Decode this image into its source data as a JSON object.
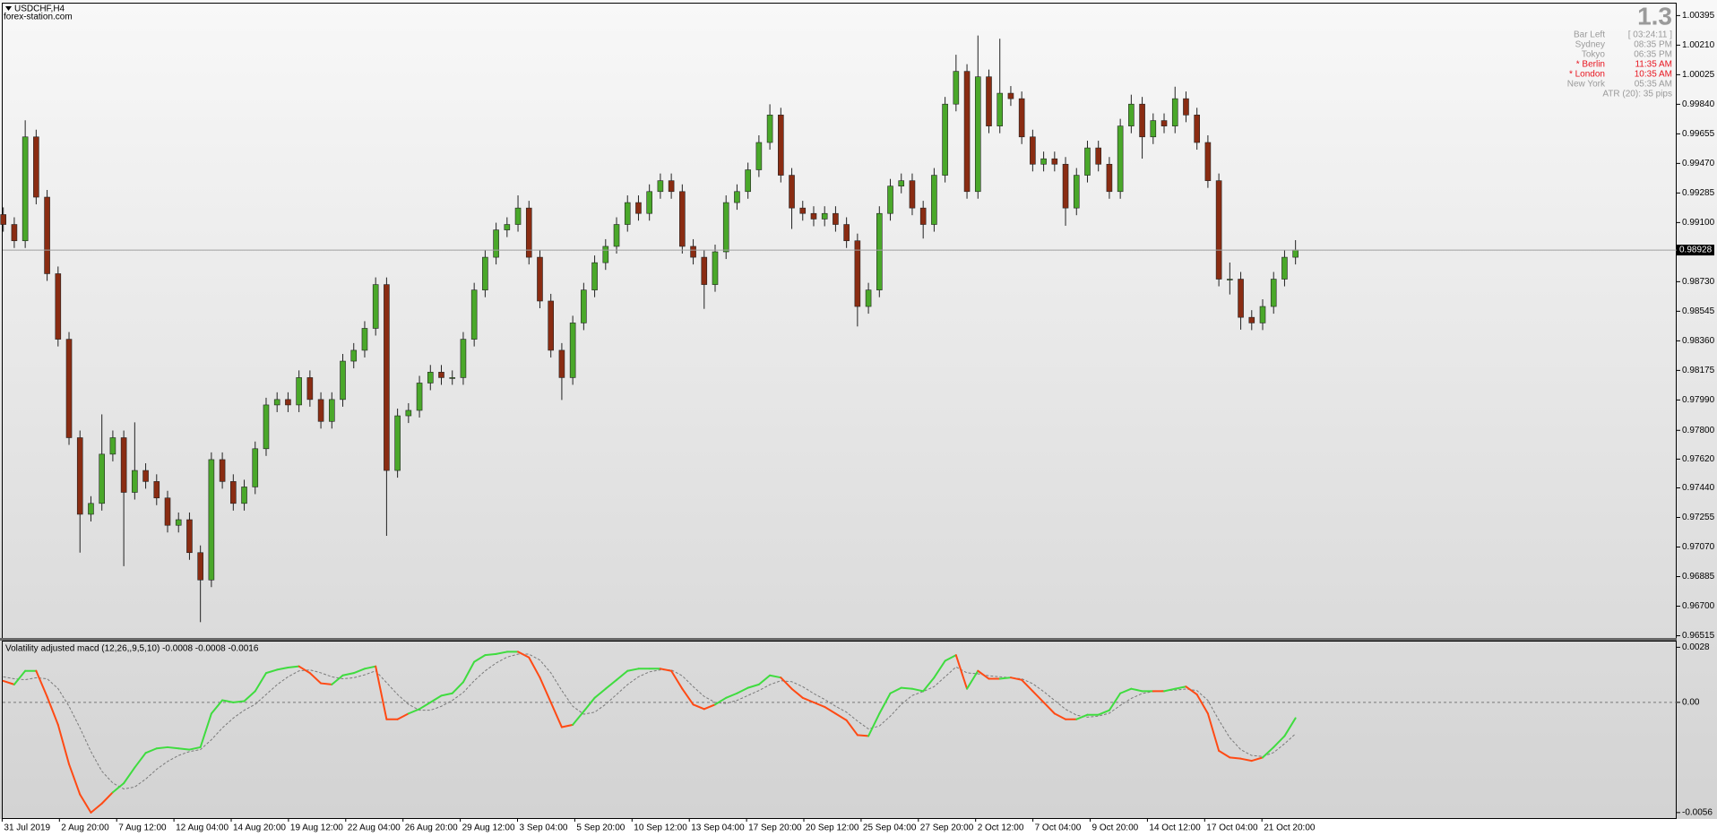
{
  "chart_data": [
    {
      "type": "candlestick",
      "title": "USDCHF,H4",
      "subtitle": "forex-station.com",
      "up_color": "#4aa82a",
      "down_color": "#8a2c12",
      "open": [
        0.9915,
        0.99088,
        0.98986,
        0.99636,
        0.99259,
        0.9878,
        0.9837,
        0.97754,
        0.97275,
        0.97343,
        0.97651,
        0.97754,
        0.97412,
        0.97549,
        0.9748,
        0.97377,
        0.97206,
        0.97241,
        0.97035,
        0.96864,
        0.97617,
        0.9748,
        0.97343,
        0.97446,
        0.97685,
        0.97959,
        0.97993,
        0.97959,
        0.9813,
        0.97993,
        0.97856,
        0.97993,
        0.98233,
        0.98301,
        0.98438,
        0.98712,
        0.97549,
        0.97891,
        0.97925,
        0.98096,
        0.98164,
        0.9813,
        0.9813,
        0.9837,
        0.98678,
        0.98883,
        0.99054,
        0.99088,
        0.99191,
        0.98883,
        0.98609,
        0.98301,
        0.9813,
        0.98472,
        0.98678,
        0.98849,
        0.98951,
        0.99088,
        0.99225,
        0.99157,
        0.99294,
        0.99362,
        0.99294,
        0.98951,
        0.98883,
        0.98712,
        0.98917,
        0.99225,
        0.99294,
        0.9943,
        0.99601,
        0.99773,
        0.99396,
        0.99191,
        0.99157,
        0.99122,
        0.99157,
        0.99088,
        0.98986,
        0.98575,
        0.98678,
        0.99157,
        0.99328,
        0.99362,
        0.99191,
        0.99088,
        0.99396,
        0.99841,
        1.00046,
        0.99294,
        1.00012,
        0.99704,
        0.99909,
        0.99875,
        0.99636,
        0.99465,
        0.99499,
        0.99465,
        0.99191,
        0.99396,
        0.99567,
        0.99465,
        0.99294,
        0.99704,
        0.99841,
        0.99636,
        0.99738,
        0.99704,
        0.99875,
        0.99773,
        0.99601,
        0.99362,
        0.98746,
        0.98746,
        0.98507,
        0.98472,
        0.98575,
        0.98746,
        0.98883
      ],
      "high": [
        0.99195,
        0.99133,
        0.9974,
        0.99681,
        0.99304,
        0.98825,
        0.98415,
        0.97799,
        0.97388,
        0.979,
        0.97799,
        0.97799,
        0.9785,
        0.97594,
        0.97525,
        0.97422,
        0.97286,
        0.97286,
        0.9708,
        0.97662,
        0.97662,
        0.97525,
        0.97491,
        0.9773,
        0.98004,
        0.98038,
        0.98038,
        0.98175,
        0.98175,
        0.98038,
        0.98038,
        0.98278,
        0.98346,
        0.98483,
        0.98757,
        0.98757,
        0.97936,
        0.9797,
        0.98141,
        0.98209,
        0.98209,
        0.98175,
        0.98415,
        0.98723,
        0.98928,
        0.99099,
        0.99133,
        0.9927,
        0.99236,
        0.98928,
        0.98654,
        0.98346,
        0.98517,
        0.98723,
        0.98894,
        0.98996,
        0.99133,
        0.9927,
        0.9927,
        0.99339,
        0.99407,
        0.99407,
        0.99339,
        0.98996,
        0.98928,
        0.98962,
        0.9927,
        0.99339,
        0.99475,
        0.99646,
        0.9984,
        0.99818,
        0.99441,
        0.99236,
        0.99202,
        0.99202,
        0.99202,
        0.99133,
        0.99031,
        0.98723,
        0.99202,
        0.99373,
        0.99407,
        0.99407,
        0.99236,
        0.99441,
        0.99886,
        1.0015,
        1.00091,
        1.0027,
        1.00057,
        1.0025,
        0.99954,
        0.9992,
        0.99681,
        0.99544,
        0.99544,
        0.9951,
        0.99441,
        0.99612,
        0.99612,
        0.9951,
        0.99749,
        0.999,
        0.99886,
        0.99783,
        0.99783,
        0.9995,
        0.9992,
        0.99818,
        0.99646,
        0.99407,
        0.9885,
        0.98791,
        0.98552,
        0.9862,
        0.98791,
        0.98928,
        0.9899
      ],
      "low": [
        0.99043,
        0.98941,
        0.98941,
        0.99214,
        0.98735,
        0.98325,
        0.97709,
        0.97035,
        0.9723,
        0.97298,
        0.97606,
        0.9695,
        0.97367,
        0.97435,
        0.97332,
        0.97161,
        0.97161,
        0.9699,
        0.966,
        0.96819,
        0.97435,
        0.97298,
        0.97298,
        0.97401,
        0.9764,
        0.97914,
        0.97914,
        0.97914,
        0.97948,
        0.97811,
        0.97811,
        0.97948,
        0.98188,
        0.98256,
        0.98393,
        0.9714,
        0.97504,
        0.97846,
        0.9788,
        0.98051,
        0.98085,
        0.98085,
        0.98085,
        0.98325,
        0.98633,
        0.98838,
        0.99009,
        0.99043,
        0.98838,
        0.98564,
        0.98256,
        0.9799,
        0.98085,
        0.98427,
        0.98633,
        0.98804,
        0.98906,
        0.99043,
        0.99112,
        0.99112,
        0.99249,
        0.99249,
        0.98906,
        0.98838,
        0.9856,
        0.98667,
        0.98872,
        0.9918,
        0.99249,
        0.99385,
        0.99556,
        0.99351,
        0.9906,
        0.99112,
        0.99077,
        0.99077,
        0.99043,
        0.98941,
        0.9845,
        0.9853,
        0.98633,
        0.99112,
        0.99283,
        0.99146,
        0.99,
        0.99043,
        0.99351,
        0.99796,
        0.99249,
        0.99249,
        0.99659,
        0.99659,
        0.9983,
        0.99591,
        0.9942,
        0.9942,
        0.9942,
        0.9908,
        0.99146,
        0.99351,
        0.9942,
        0.99249,
        0.99249,
        0.99659,
        0.995,
        0.99591,
        0.99659,
        0.99659,
        0.99728,
        0.99556,
        0.99317,
        0.98701,
        0.9865,
        0.9843,
        0.98427,
        0.98427,
        0.9853,
        0.98701,
        0.98838
      ],
      "close": [
        0.99088,
        0.98986,
        0.99636,
        0.99259,
        0.9878,
        0.9837,
        0.97754,
        0.97275,
        0.97343,
        0.97651,
        0.97754,
        0.97412,
        0.97549,
        0.9748,
        0.97377,
        0.97206,
        0.97241,
        0.97035,
        0.96864,
        0.97617,
        0.9748,
        0.97343,
        0.97446,
        0.97685,
        0.97959,
        0.97993,
        0.97959,
        0.9813,
        0.97993,
        0.97856,
        0.97993,
        0.98233,
        0.98301,
        0.98438,
        0.98712,
        0.97549,
        0.97891,
        0.97925,
        0.98096,
        0.98164,
        0.9813,
        0.9813,
        0.9837,
        0.98678,
        0.98883,
        0.99054,
        0.99088,
        0.99191,
        0.98883,
        0.98609,
        0.98301,
        0.9813,
        0.98472,
        0.98678,
        0.98849,
        0.98951,
        0.99088,
        0.99225,
        0.99157,
        0.99294,
        0.99362,
        0.99294,
        0.98951,
        0.98883,
        0.98712,
        0.98917,
        0.99225,
        0.99294,
        0.9943,
        0.99601,
        0.99773,
        0.99396,
        0.99191,
        0.99157,
        0.99122,
        0.99157,
        0.99088,
        0.98986,
        0.98575,
        0.98678,
        0.99157,
        0.99328,
        0.99362,
        0.99191,
        0.99088,
        0.99396,
        0.99841,
        1.00046,
        0.99294,
        1.00012,
        0.99704,
        0.99909,
        0.99875,
        0.99636,
        0.99465,
        0.99499,
        0.99465,
        0.99191,
        0.99396,
        0.99567,
        0.99465,
        0.99294,
        0.99704,
        0.99841,
        0.99636,
        0.99738,
        0.99704,
        0.99875,
        0.99773,
        0.99601,
        0.99362,
        0.98746,
        0.98746,
        0.98507,
        0.98472,
        0.98575,
        0.98746,
        0.98883,
        0.98928
      ],
      "current_price": 0.98928,
      "ylim": [
        0.96501,
        1.0047
      ],
      "yticks": [
        1.00395,
        {
          "value": 1.0021,
          "label": "1.00210"
        },
        1.00025,
        {
          "value": 0.9984,
          "label": "0.99840"
        },
        0.99655,
        {
          "value": 0.9947,
          "label": "0.99470"
        },
        0.99285,
        {
          "value": 0.991,
          "label": "0.99100"
        },
        {
          "value": 0.9873,
          "label": "0.98730"
        },
        0.98545,
        {
          "value": 0.9836,
          "label": "0.98360"
        },
        0.98175,
        {
          "value": 0.9799,
          "label": "0.97990"
        },
        {
          "value": 0.978,
          "label": "0.97800"
        },
        {
          "value": 0.9762,
          "label": "0.97620"
        },
        {
          "value": 0.9744,
          "label": "0.97440"
        },
        0.97255,
        {
          "value": 0.9707,
          "label": "0.97070"
        },
        0.96885,
        {
          "value": 0.967,
          "label": "0.96700"
        },
        0.96515
      ],
      "x_labels": [
        "31 Jul 2019",
        "2 Aug 20:00",
        "7 Aug 12:00",
        "12 Aug 04:00",
        "14 Aug 20:00",
        "19 Aug 12:00",
        "22 Aug 04:00",
        "26 Aug 20:00",
        "29 Aug 12:00",
        "3 Sep 04:00",
        "5 Sep 20:00",
        "10 Sep 12:00",
        "13 Sep 04:00",
        "17 Sep 20:00",
        "20 Sep 12:00",
        "25 Sep 04:00",
        "27 Sep 20:00",
        "2 Oct 12:00",
        "7 Oct 04:00",
        "9 Oct 20:00",
        "14 Oct 12:00",
        "17 Oct 04:00",
        "21 Oct 20:00"
      ]
    },
    {
      "type": "line",
      "title": "Volatility adjusted macd (12,26,,9,5,10) -0.0008 -0.0008 -0.0016",
      "series": [
        {
          "colors": {
            "above": "#3fdc3f",
            "below": "#ff4a14"
          },
          "values": [
            0.00109,
            0.00091,
            0.0016,
            0.0016,
            0.00029,
            -0.00114,
            -0.00314,
            -0.00468,
            -0.0056,
            -0.00514,
            -0.00457,
            -0.00411,
            -0.00331,
            -0.00257,
            -0.00234,
            -0.00228,
            -0.00234,
            -0.0024,
            -0.00228,
            -0.00057,
            0.00011,
            0,
            6e-05,
            0.00057,
            0.00149,
            0.00166,
            0.00177,
            0.00183,
            0.00149,
            0.00097,
            0.00091,
            0.00137,
            0.00149,
            0.00171,
            0.00183,
            -0.00086,
            -0.00086,
            -0.00057,
            -0.00034,
            0,
            0.00034,
            0.00046,
            0.00103,
            0.00206,
            0.0024,
            0.00246,
            0.00257,
            0.00257,
            0.00228,
            0.00126,
            0,
            -0.00126,
            -0.00114,
            -0.00046,
            0.00023,
            0.00069,
            0.00114,
            0.0016,
            0.00171,
            0.00171,
            0.00171,
            0.0016,
            0.00069,
            -0.00011,
            -0.00034,
            -0.00011,
            0.00023,
            0.00046,
            0.00074,
            0.00091,
            0.00137,
            0.00126,
            0.00069,
            0.00023,
            0,
            -0.00023,
            -0.00057,
            -0.00091,
            -0.00166,
            -0.00171,
            -0.00057,
            0.00046,
            0.00074,
            0.00069,
            0.00057,
            0.00126,
            0.00211,
            0.0024,
            0.00069,
            0.0016,
            0.0012,
            0.0012,
            0.00126,
            0.00114,
            0.00057,
            0,
            -0.00057,
            -0.00086,
            -0.00086,
            -0.00063,
            -0.00063,
            -0.0004,
            0.00046,
            0.00069,
            0.00057,
            0.00057,
            0.00057,
            0.00069,
            0.0008,
            0.0004,
            -0.00057,
            -0.00246,
            -0.0028,
            -0.00286,
            -0.00297,
            -0.0028,
            -0.00228,
            -0.00171,
            -0.0008
          ]
        },
        {
          "color": "#7a7a7a",
          "dashed": true,
          "values": [
            0.0013,
            0.0012,
            0.00115,
            0.00125,
            0.0012,
            0.0007,
            -0.0002,
            -0.0013,
            -0.0025,
            -0.0035,
            -0.0041,
            -0.0044,
            -0.0043,
            -0.0039,
            -0.0034,
            -0.003,
            -0.0027,
            -0.0025,
            -0.0024,
            -0.0019,
            -0.0013,
            -0.0008,
            -0.0004,
            -0.0001,
            0.0004,
            0.0009,
            0.0013,
            0.0016,
            0.00165,
            0.0015,
            0.0013,
            0.0012,
            0.00125,
            0.0014,
            0.0016,
            0.001,
            0.0004,
            -0.0001,
            -0.0004,
            -0.0004,
            -0.0002,
            0.0001,
            0.0005,
            0.0011,
            0.0016,
            0.002,
            0.0023,
            0.00245,
            0.00245,
            0.00215,
            0.0015,
            0.0006,
            -0.0002,
            -0.0006,
            -0.0005,
            -0.0001,
            0.0004,
            0.0009,
            0.0013,
            0.00155,
            0.00165,
            0.00165,
            0.00135,
            0.0008,
            0.0003,
            0,
            -5e-05,
            0.0001,
            0.00035,
            0.0006,
            0.0009,
            0.0011,
            0.00105,
            0.0008,
            0.00045,
            0.00015,
            -0.0002,
            -0.0005,
            -0.00095,
            -0.00135,
            -0.0012,
            -0.0007,
            -0.0001,
            0.00035,
            0.00055,
            0.0008,
            0.0013,
            0.0018,
            0.0015,
            0.00145,
            0.00135,
            0.0013,
            0.00125,
            0.0012,
            0.00095,
            0.00055,
            0.0001,
            -0.00035,
            -0.00065,
            -0.00075,
            -0.0007,
            -0.00055,
            -0.00015,
            0.0002,
            0.00045,
            0.00055,
            0.0006,
            0.00062,
            0.00068,
            0.0006,
            0.0001,
            -0.0009,
            -0.0018,
            -0.0024,
            -0.0027,
            -0.00275,
            -0.00255,
            -0.0021,
            -0.0016
          ]
        }
      ],
      "levels": [
        0
      ],
      "ylim": [
        -0.00588,
        0.00309
      ],
      "yticks": [
        0.0028,
        {
          "value": 0,
          "label": "0.00"
        },
        -0.0056
      ]
    }
  ],
  "info": {
    "big": "1.3",
    "rows": [
      [
        "Bar Left",
        "[ 03:24:11 ]"
      ],
      [
        "Sydney",
        "08:35 PM"
      ],
      [
        "Tokyo",
        "06:35 PM"
      ],
      [
        "* Berlin",
        "11:35 AM"
      ],
      [
        "* London",
        "10:35 AM"
      ],
      [
        "New York",
        "05:35 AM"
      ]
    ],
    "atr": "ATR (20): 35 pips"
  }
}
